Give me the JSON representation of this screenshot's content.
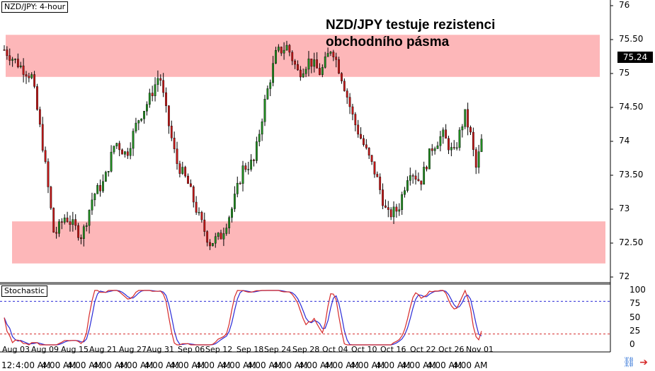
{
  "window": {
    "symbol_label": "NZD/JPY: 4-hour"
  },
  "annotation": {
    "line1": "NZD/JPY testuje rezistenci",
    "line2": "obchodního pásma"
  },
  "current_price": "75.24",
  "indicator": {
    "name": "Stochastic",
    "levels": [
      "100",
      "75",
      "50",
      "25",
      "0"
    ],
    "overbought": 80,
    "oversold": 20
  },
  "time_axis": {
    "first_label": "12:",
    "repeat_label": "4:00 AM",
    "dates": [
      "Aug 03",
      "Aug 09",
      "Aug 15",
      "Aug 21",
      "Aug 27",
      "Aug 31",
      "Sep 06",
      "Sep 12",
      "Sep 18",
      "Sep 24",
      "Sep 28",
      "Oct 04",
      "Oct 10",
      "Oct 16",
      "Oct 22",
      "Oct 26",
      "Nov 01"
    ]
  },
  "icons": {
    "link": "link-icon",
    "arrow": "autoscroll-arrow-icon"
  },
  "colors": {
    "zone": "#fdb7b9",
    "bull": "#1f8b1f",
    "bear": "#c41616",
    "stoch_k": "#d62a2a",
    "stoch_d": "#2a2ad6"
  },
  "chart_data": {
    "type": "candlestick",
    "y_axis_ticks": [
      "76",
      "75.50",
      "75",
      "74.50",
      "74",
      "73.50",
      "73",
      "72.50",
      "72"
    ],
    "ylim": [
      72,
      76.2
    ],
    "zones": [
      {
        "name": "resistance",
        "low": 74.95,
        "high": 75.57
      },
      {
        "name": "support",
        "low": 72.2,
        "high": 72.82
      }
    ],
    "close_path": [
      [
        0,
        75.35
      ],
      [
        6,
        75.1
      ],
      [
        10,
        74.95
      ],
      [
        14,
        73.9
      ],
      [
        18,
        72.6
      ],
      [
        22,
        72.9
      ],
      [
        28,
        72.6
      ],
      [
        32,
        73.2
      ],
      [
        36,
        73.4
      ],
      [
        40,
        74.0
      ],
      [
        44,
        73.8
      ],
      [
        48,
        74.3
      ],
      [
        52,
        74.6
      ],
      [
        56,
        75.0
      ],
      [
        58,
        74.5
      ],
      [
        62,
        73.7
      ],
      [
        66,
        73.4
      ],
      [
        70,
        72.9
      ],
      [
        74,
        72.5
      ],
      [
        78,
        72.6
      ],
      [
        82,
        73.0
      ],
      [
        86,
        73.6
      ],
      [
        90,
        73.7
      ],
      [
        94,
        74.6
      ],
      [
        98,
        75.3
      ],
      [
        102,
        75.4
      ],
      [
        106,
        75.0
      ],
      [
        110,
        75.2
      ],
      [
        114,
        75.0
      ],
      [
        118,
        75.4
      ],
      [
        122,
        74.9
      ],
      [
        126,
        74.3
      ],
      [
        130,
        73.9
      ],
      [
        134,
        73.5
      ],
      [
        138,
        72.9
      ],
      [
        142,
        73.0
      ],
      [
        146,
        73.6
      ],
      [
        150,
        73.4
      ],
      [
        154,
        73.9
      ],
      [
        158,
        74.1
      ],
      [
        162,
        73.8
      ],
      [
        166,
        74.4
      ],
      [
        168,
        74.1
      ],
      [
        170,
        73.6
      ],
      [
        172,
        74.0
      ]
    ],
    "current": 75.24
  }
}
